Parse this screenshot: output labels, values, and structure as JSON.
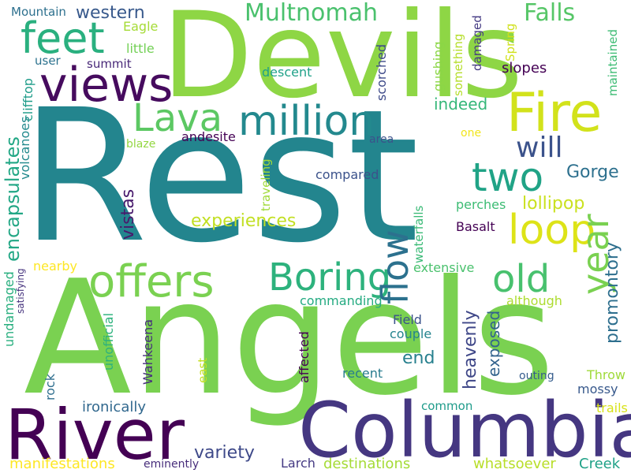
{
  "words": [
    {
      "text": "Rest",
      "color": "#23858e"
    },
    {
      "text": "Angels",
      "color": "#7ad151"
    },
    {
      "text": "Devils",
      "color": "#8ed645"
    },
    {
      "text": "Columbia",
      "color": "#453781"
    },
    {
      "text": "River",
      "color": "#440154"
    },
    {
      "text": "Fire",
      "color": "#d2e21b"
    },
    {
      "text": "views",
      "color": "#460b5e"
    },
    {
      "text": "feet",
      "color": "#2ab07f"
    },
    {
      "text": "offers",
      "color": "#7ad151"
    },
    {
      "text": "Boring",
      "color": "#2db27d"
    },
    {
      "text": "million",
      "color": "#23898e"
    },
    {
      "text": "Lava",
      "color": "#5cc863"
    },
    {
      "text": "loop",
      "color": "#dde318"
    },
    {
      "text": "two",
      "color": "#20a386"
    },
    {
      "text": "old",
      "color": "#48c16e"
    },
    {
      "text": "year",
      "color": "#7ad151"
    },
    {
      "text": "flow",
      "color": "#2c718e"
    },
    {
      "text": "will",
      "color": "#3b528b"
    },
    {
      "text": "Multnomah",
      "color": "#4ac16d"
    },
    {
      "text": "Falls",
      "color": "#56c667"
    },
    {
      "text": "western",
      "color": "#38598c"
    },
    {
      "text": "encapsulates",
      "color": "#22a785"
    },
    {
      "text": "experiences",
      "color": "#c2df23"
    },
    {
      "text": "lollipop",
      "color": "#cae11f"
    },
    {
      "text": "Gorge",
      "color": "#2d708e"
    },
    {
      "text": "vistas",
      "color": "#481a6c"
    },
    {
      "text": "indeed",
      "color": "#35b779"
    },
    {
      "text": "promontory",
      "color": "#2e6f8e"
    },
    {
      "text": "heavenly",
      "color": "#3f4788"
    },
    {
      "text": "exposed",
      "color": "#33638d"
    },
    {
      "text": "end",
      "color": "#27808e"
    },
    {
      "text": "variety",
      "color": "#3e4989"
    },
    {
      "text": "ironically",
      "color": "#31688e"
    },
    {
      "text": "manifestations",
      "color": "#fde725"
    },
    {
      "text": "destinations",
      "color": "#a5db36"
    },
    {
      "text": "whatsoever",
      "color": "#b8de29"
    },
    {
      "text": "Creek",
      "color": "#1fa187"
    },
    {
      "text": "Larch",
      "color": "#443983"
    },
    {
      "text": "eminently",
      "color": "#472d7b"
    },
    {
      "text": "trails",
      "color": "#d8e219"
    },
    {
      "text": "mossy",
      "color": "#38598c"
    },
    {
      "text": "Throw",
      "color": "#9fda3a"
    },
    {
      "text": "common",
      "color": "#1e9b8a"
    },
    {
      "text": "outing",
      "color": "#365d8d"
    },
    {
      "text": "recent",
      "color": "#287c8e"
    },
    {
      "text": "couple",
      "color": "#25848e"
    },
    {
      "text": "Field",
      "color": "#3b528b"
    },
    {
      "text": "commanding",
      "color": "#25ab82"
    },
    {
      "text": "although",
      "color": "#addc30"
    },
    {
      "text": "extensive",
      "color": "#4ac16d"
    },
    {
      "text": "Basalt",
      "color": "#440154"
    },
    {
      "text": "perches",
      "color": "#3dbc74"
    },
    {
      "text": "compared",
      "color": "#3b528b"
    },
    {
      "text": "area",
      "color": "#3b528b"
    },
    {
      "text": "one",
      "color": "#f1e51d"
    },
    {
      "text": "andesite",
      "color": "#440154"
    },
    {
      "text": "blaze",
      "color": "#93d741"
    },
    {
      "text": "descent",
      "color": "#1fa188"
    },
    {
      "text": "summit",
      "color": "#482878"
    },
    {
      "text": "user",
      "color": "#2c728e"
    },
    {
      "text": "little",
      "color": "#73d056"
    },
    {
      "text": "Eagle",
      "color": "#a5db36"
    },
    {
      "text": "Mountain",
      "color": "#2d708e"
    },
    {
      "text": "slopes",
      "color": "#440154"
    },
    {
      "text": "Spring",
      "color": "#d0e11c"
    },
    {
      "text": "gushing",
      "color": "#8bd646"
    },
    {
      "text": "something",
      "color": "#b5de2b"
    },
    {
      "text": "damaged",
      "color": "#443a83"
    },
    {
      "text": "maintained",
      "color": "#3dbc74"
    },
    {
      "text": "scorched",
      "color": "#3e4a89"
    },
    {
      "text": "clifftop",
      "color": "#1e9c89"
    },
    {
      "text": "volcanoes",
      "color": "#238a8d"
    },
    {
      "text": "nearby",
      "color": "#fde725"
    },
    {
      "text": "satisfying",
      "color": "#46337e"
    },
    {
      "text": "undamaged",
      "color": "#29af7f"
    },
    {
      "text": "unofficial",
      "color": "#2db27d"
    },
    {
      "text": "Wahkeena",
      "color": "#472f7d"
    },
    {
      "text": "rock",
      "color": "#2e6e8e"
    },
    {
      "text": "affected",
      "color": "#440154"
    },
    {
      "text": "east",
      "color": "#c5e021"
    },
    {
      "text": "traveling",
      "color": "#a0da39"
    },
    {
      "text": "waterfalls",
      "color": "#3aba76"
    }
  ]
}
